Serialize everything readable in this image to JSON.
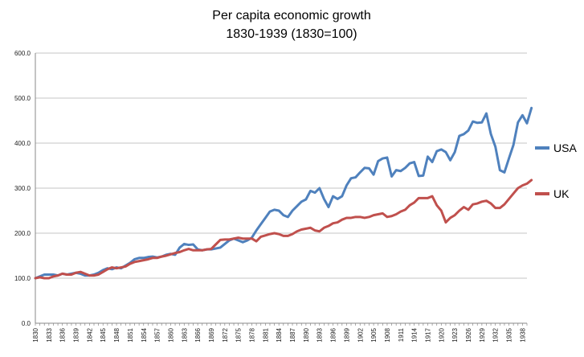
{
  "chart_data": {
    "type": "line",
    "title": "Per capita economic growth",
    "subtitle": "1830-1939 (1830=100)",
    "xlabel": "",
    "ylabel": "",
    "ylim": [
      0,
      600
    ],
    "yticks": [
      "0.0",
      "100.0",
      "200.0",
      "300.0",
      "400.0",
      "500.0",
      "600.0"
    ],
    "x_start": 1830,
    "x_end": 1939,
    "xticks": [
      "1830",
      "1833",
      "1836",
      "1839",
      "1842",
      "1845",
      "1848",
      "1851",
      "1854",
      "1857",
      "1860",
      "1863",
      "1866",
      "1869",
      "1872",
      "1875",
      "1878",
      "1881",
      "1884",
      "1887",
      "1890",
      "1893",
      "1896",
      "1899",
      "1902",
      "1905",
      "1908",
      "1911",
      "1914",
      "1917",
      "1920",
      "1923",
      "1926",
      "1929",
      "1932",
      "1935",
      "1938"
    ],
    "grid": true,
    "legend_position": "right",
    "series": [
      {
        "name": "USA",
        "color": "#4f81bd",
        "points": [
          [
            1830,
            100
          ],
          [
            1831,
            104
          ],
          [
            1832,
            108
          ],
          [
            1833,
            108
          ],
          [
            1834,
            108
          ],
          [
            1835,
            106
          ],
          [
            1836,
            110
          ],
          [
            1837,
            108
          ],
          [
            1838,
            110
          ],
          [
            1839,
            112
          ],
          [
            1840,
            110
          ],
          [
            1841,
            106
          ],
          [
            1842,
            106
          ],
          [
            1843,
            108
          ],
          [
            1844,
            112
          ],
          [
            1845,
            118
          ],
          [
            1846,
            122
          ],
          [
            1847,
            120
          ],
          [
            1848,
            124
          ],
          [
            1849,
            122
          ],
          [
            1850,
            128
          ],
          [
            1851,
            134
          ],
          [
            1852,
            142
          ],
          [
            1853,
            145
          ],
          [
            1854,
            145
          ],
          [
            1855,
            147
          ],
          [
            1856,
            148
          ],
          [
            1857,
            146
          ],
          [
            1858,
            148
          ],
          [
            1859,
            152
          ],
          [
            1860,
            154
          ],
          [
            1861,
            152
          ],
          [
            1862,
            168
          ],
          [
            1863,
            176
          ],
          [
            1864,
            174
          ],
          [
            1865,
            175
          ],
          [
            1866,
            164
          ],
          [
            1867,
            162
          ],
          [
            1868,
            164
          ],
          [
            1869,
            164
          ],
          [
            1870,
            166
          ],
          [
            1871,
            168
          ],
          [
            1872,
            176
          ],
          [
            1873,
            184
          ],
          [
            1874,
            188
          ],
          [
            1875,
            184
          ],
          [
            1876,
            180
          ],
          [
            1877,
            184
          ],
          [
            1878,
            190
          ],
          [
            1879,
            206
          ],
          [
            1880,
            220
          ],
          [
            1881,
            234
          ],
          [
            1882,
            248
          ],
          [
            1883,
            252
          ],
          [
            1884,
            250
          ],
          [
            1885,
            240
          ],
          [
            1886,
            236
          ],
          [
            1887,
            250
          ],
          [
            1888,
            260
          ],
          [
            1889,
            270
          ],
          [
            1890,
            275
          ],
          [
            1891,
            294
          ],
          [
            1892,
            290
          ],
          [
            1893,
            300
          ],
          [
            1894,
            276
          ],
          [
            1895,
            258
          ],
          [
            1896,
            282
          ],
          [
            1897,
            276
          ],
          [
            1898,
            282
          ],
          [
            1899,
            306
          ],
          [
            1900,
            322
          ],
          [
            1901,
            324
          ],
          [
            1902,
            335
          ],
          [
            1903,
            345
          ],
          [
            1904,
            344
          ],
          [
            1905,
            330
          ],
          [
            1906,
            360
          ],
          [
            1907,
            366
          ],
          [
            1908,
            368
          ],
          [
            1909,
            326
          ],
          [
            1910,
            340
          ],
          [
            1911,
            338
          ],
          [
            1912,
            345
          ],
          [
            1913,
            355
          ],
          [
            1914,
            358
          ],
          [
            1915,
            327
          ],
          [
            1916,
            328
          ],
          [
            1917,
            370
          ],
          [
            1918,
            358
          ],
          [
            1919,
            382
          ],
          [
            1920,
            386
          ],
          [
            1921,
            380
          ],
          [
            1922,
            362
          ],
          [
            1923,
            380
          ],
          [
            1924,
            416
          ],
          [
            1925,
            420
          ],
          [
            1926,
            428
          ],
          [
            1927,
            448
          ],
          [
            1928,
            445
          ],
          [
            1929,
            446
          ],
          [
            1930,
            466
          ],
          [
            1931,
            420
          ],
          [
            1932,
            392
          ],
          [
            1933,
            340
          ],
          [
            1934,
            335
          ],
          [
            1935,
            366
          ],
          [
            1936,
            396
          ],
          [
            1937,
            446
          ],
          [
            1938,
            462
          ],
          [
            1939,
            444
          ],
          [
            1940,
            478
          ]
        ]
      },
      {
        "name": "UK",
        "color": "#c0504d",
        "points": [
          [
            1830,
            100
          ],
          [
            1831,
            102
          ],
          [
            1832,
            100
          ],
          [
            1833,
            100
          ],
          [
            1834,
            104
          ],
          [
            1835,
            106
          ],
          [
            1836,
            110
          ],
          [
            1837,
            108
          ],
          [
            1838,
            108
          ],
          [
            1839,
            112
          ],
          [
            1840,
            114
          ],
          [
            1841,
            110
          ],
          [
            1842,
            106
          ],
          [
            1843,
            106
          ],
          [
            1844,
            108
          ],
          [
            1845,
            114
          ],
          [
            1846,
            120
          ],
          [
            1847,
            124
          ],
          [
            1848,
            122
          ],
          [
            1849,
            124
          ],
          [
            1850,
            126
          ],
          [
            1851,
            132
          ],
          [
            1852,
            136
          ],
          [
            1853,
            138
          ],
          [
            1854,
            140
          ],
          [
            1855,
            142
          ],
          [
            1856,
            145
          ],
          [
            1857,
            145
          ],
          [
            1858,
            148
          ],
          [
            1859,
            150
          ],
          [
            1860,
            153
          ],
          [
            1861,
            156
          ],
          [
            1862,
            158
          ],
          [
            1863,
            162
          ],
          [
            1864,
            165
          ],
          [
            1865,
            162
          ],
          [
            1866,
            162
          ],
          [
            1867,
            162
          ],
          [
            1868,
            164
          ],
          [
            1869,
            165
          ],
          [
            1870,
            175
          ],
          [
            1871,
            185
          ],
          [
            1872,
            186
          ],
          [
            1873,
            186
          ],
          [
            1874,
            188
          ],
          [
            1875,
            190
          ],
          [
            1876,
            188
          ],
          [
            1877,
            188
          ],
          [
            1878,
            188
          ],
          [
            1879,
            182
          ],
          [
            1880,
            192
          ],
          [
            1881,
            195
          ],
          [
            1882,
            198
          ],
          [
            1883,
            200
          ],
          [
            1884,
            198
          ],
          [
            1885,
            194
          ],
          [
            1886,
            194
          ],
          [
            1887,
            198
          ],
          [
            1888,
            204
          ],
          [
            1889,
            208
          ],
          [
            1890,
            210
          ],
          [
            1891,
            212
          ],
          [
            1892,
            206
          ],
          [
            1893,
            204
          ],
          [
            1894,
            212
          ],
          [
            1895,
            216
          ],
          [
            1896,
            222
          ],
          [
            1897,
            224
          ],
          [
            1898,
            230
          ],
          [
            1899,
            234
          ],
          [
            1900,
            234
          ],
          [
            1901,
            236
          ],
          [
            1902,
            236
          ],
          [
            1903,
            234
          ],
          [
            1904,
            236
          ],
          [
            1905,
            240
          ],
          [
            1906,
            242
          ],
          [
            1907,
            244
          ],
          [
            1908,
            236
          ],
          [
            1909,
            238
          ],
          [
            1910,
            242
          ],
          [
            1911,
            248
          ],
          [
            1912,
            252
          ],
          [
            1913,
            262
          ],
          [
            1914,
            268
          ],
          [
            1915,
            278
          ],
          [
            1916,
            278
          ],
          [
            1917,
            278
          ],
          [
            1918,
            282
          ],
          [
            1919,
            262
          ],
          [
            1920,
            250
          ],
          [
            1921,
            224
          ],
          [
            1922,
            234
          ],
          [
            1923,
            240
          ],
          [
            1924,
            250
          ],
          [
            1925,
            258
          ],
          [
            1926,
            252
          ],
          [
            1927,
            264
          ],
          [
            1928,
            266
          ],
          [
            1929,
            270
          ],
          [
            1930,
            272
          ],
          [
            1931,
            266
          ],
          [
            1932,
            256
          ],
          [
            1933,
            256
          ],
          [
            1934,
            264
          ],
          [
            1935,
            276
          ],
          [
            1936,
            288
          ],
          [
            1937,
            300
          ],
          [
            1938,
            306
          ],
          [
            1939,
            310
          ],
          [
            1940,
            318
          ]
        ]
      }
    ]
  }
}
